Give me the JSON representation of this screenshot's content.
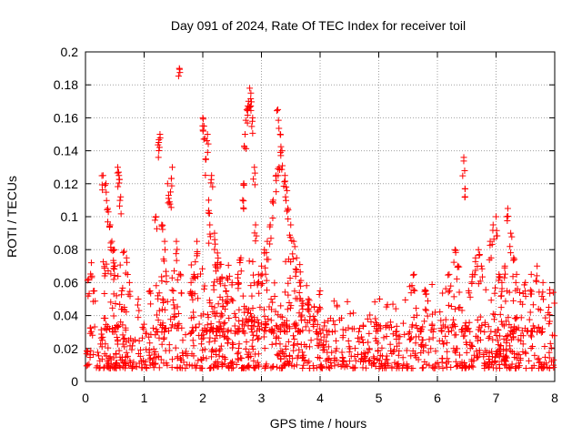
{
  "chart_data": {
    "type": "scatter",
    "title": "Day 091 of 2024, Rate Of TEC Index for receiver toil",
    "xlabel": "GPS time / hours",
    "ylabel": "ROTI / TECUs",
    "xlim": [
      0,
      8
    ],
    "ylim": [
      0,
      0.2
    ],
    "x_ticks": [
      0,
      1,
      2,
      3,
      4,
      5,
      6,
      7,
      8
    ],
    "x_tick_labels": [
      "0",
      "1",
      "2",
      "3",
      "4",
      "5",
      "6",
      "7",
      "8"
    ],
    "y_ticks": [
      0,
      0.02,
      0.04,
      0.06,
      0.08,
      0.1,
      0.12,
      0.14,
      0.16,
      0.18,
      0.2
    ],
    "y_tick_labels": [
      "0",
      "0.02",
      "0.04",
      "0.06",
      "0.08",
      "0.1",
      "0.12",
      "0.14",
      "0.16",
      "0.18",
      "0.2"
    ],
    "grid": true,
    "marker": "+",
    "series": [
      {
        "name": "ROTI",
        "color": "#ff0000",
        "points": [
          [
            0.05,
            0.062
          ],
          [
            0.1,
            0.072
          ],
          [
            0.15,
            0.055
          ],
          [
            0.3,
            0.125
          ],
          [
            0.35,
            0.12
          ],
          [
            0.38,
            0.105
          ],
          [
            0.42,
            0.095
          ],
          [
            0.45,
            0.085
          ],
          [
            0.48,
            0.08
          ],
          [
            0.5,
            0.07
          ],
          [
            0.55,
            0.13
          ],
          [
            0.57,
            0.125
          ],
          [
            0.6,
            0.112
          ],
          [
            0.62,
            0.055
          ],
          [
            0.7,
            0.075
          ],
          [
            0.75,
            0.06
          ],
          [
            0.9,
            0.05
          ],
          [
            1.1,
            0.055
          ],
          [
            1.2,
            0.1
          ],
          [
            1.25,
            0.145
          ],
          [
            1.27,
            0.15
          ],
          [
            1.3,
            0.095
          ],
          [
            1.35,
            0.085
          ],
          [
            1.4,
            0.12
          ],
          [
            1.45,
            0.115
          ],
          [
            1.48,
            0.13
          ],
          [
            1.5,
            0.055
          ],
          [
            1.55,
            0.085
          ],
          [
            1.6,
            0.19
          ],
          [
            1.62,
            0.065
          ],
          [
            1.8,
            0.06
          ],
          [
            1.85,
            0.065
          ],
          [
            1.9,
            0.085
          ],
          [
            2.0,
            0.16
          ],
          [
            2.02,
            0.155
          ],
          [
            2.05,
            0.135
          ],
          [
            2.08,
            0.15
          ],
          [
            2.1,
            0.11
          ],
          [
            2.12,
            0.095
          ],
          [
            2.15,
            0.125
          ],
          [
            2.2,
            0.09
          ],
          [
            2.25,
            0.078
          ],
          [
            2.3,
            0.062
          ],
          [
            2.4,
            0.055
          ],
          [
            2.5,
            0.06
          ],
          [
            2.6,
            0.065
          ],
          [
            2.65,
            0.075
          ],
          [
            2.68,
            0.11
          ],
          [
            2.7,
            0.12
          ],
          [
            2.72,
            0.15
          ],
          [
            2.75,
            0.165
          ],
          [
            2.78,
            0.17
          ],
          [
            2.8,
            0.178
          ],
          [
            2.82,
            0.175
          ],
          [
            2.85,
            0.16
          ],
          [
            2.88,
            0.13
          ],
          [
            2.9,
            0.095
          ],
          [
            2.95,
            0.065
          ],
          [
            3.0,
            0.07
          ],
          [
            3.05,
            0.08
          ],
          [
            3.1,
            0.085
          ],
          [
            3.15,
            0.095
          ],
          [
            3.2,
            0.11
          ],
          [
            3.25,
            0.125
          ],
          [
            3.28,
            0.165
          ],
          [
            3.3,
            0.13
          ],
          [
            3.32,
            0.15
          ],
          [
            3.35,
            0.14
          ],
          [
            3.4,
            0.125
          ],
          [
            3.42,
            0.118
          ],
          [
            3.45,
            0.105
          ],
          [
            3.5,
            0.095
          ],
          [
            3.55,
            0.085
          ],
          [
            3.6,
            0.075
          ],
          [
            3.65,
            0.06
          ],
          [
            3.8,
            0.05
          ],
          [
            3.9,
            0.045
          ],
          [
            4.0,
            0.055
          ],
          [
            5.6,
            0.065
          ],
          [
            5.8,
            0.055
          ],
          [
            6.2,
            0.065
          ],
          [
            6.3,
            0.08
          ],
          [
            6.35,
            0.07
          ],
          [
            6.45,
            0.136
          ],
          [
            6.47,
            0.117
          ],
          [
            6.6,
            0.065
          ],
          [
            6.65,
            0.075
          ],
          [
            6.7,
            0.08
          ],
          [
            6.75,
            0.07
          ],
          [
            6.9,
            0.085
          ],
          [
            6.95,
            0.095
          ],
          [
            7.0,
            0.1
          ],
          [
            7.05,
            0.065
          ],
          [
            7.1,
            0.06
          ],
          [
            7.15,
            0.07
          ],
          [
            7.2,
            0.105
          ],
          [
            7.25,
            0.09
          ],
          [
            7.3,
            0.075
          ],
          [
            7.35,
            0.065
          ],
          [
            7.5,
            0.06
          ],
          [
            7.6,
            0.065
          ],
          [
            7.7,
            0.07
          ],
          [
            7.8,
            0.06
          ],
          [
            7.9,
            0.045
          ]
        ]
      }
    ],
    "noise_bands": [
      {
        "x_from": 0,
        "x_to": 8,
        "y_lo": 0.008,
        "y_hi": 0.035,
        "density": 900
      },
      {
        "x_from": 0.3,
        "x_to": 0.7,
        "y_lo": 0.03,
        "y_hi": 0.08,
        "density": 40
      },
      {
        "x_from": 1.2,
        "x_to": 1.6,
        "y_lo": 0.03,
        "y_hi": 0.07,
        "density": 45
      },
      {
        "x_from": 1.8,
        "x_to": 3.8,
        "y_lo": 0.03,
        "y_hi": 0.075,
        "density": 220
      },
      {
        "x_from": 3.8,
        "x_to": 5.5,
        "y_lo": 0.03,
        "y_hi": 0.05,
        "density": 60
      },
      {
        "x_from": 5.5,
        "x_to": 8,
        "y_lo": 0.03,
        "y_hi": 0.06,
        "density": 120
      }
    ]
  }
}
